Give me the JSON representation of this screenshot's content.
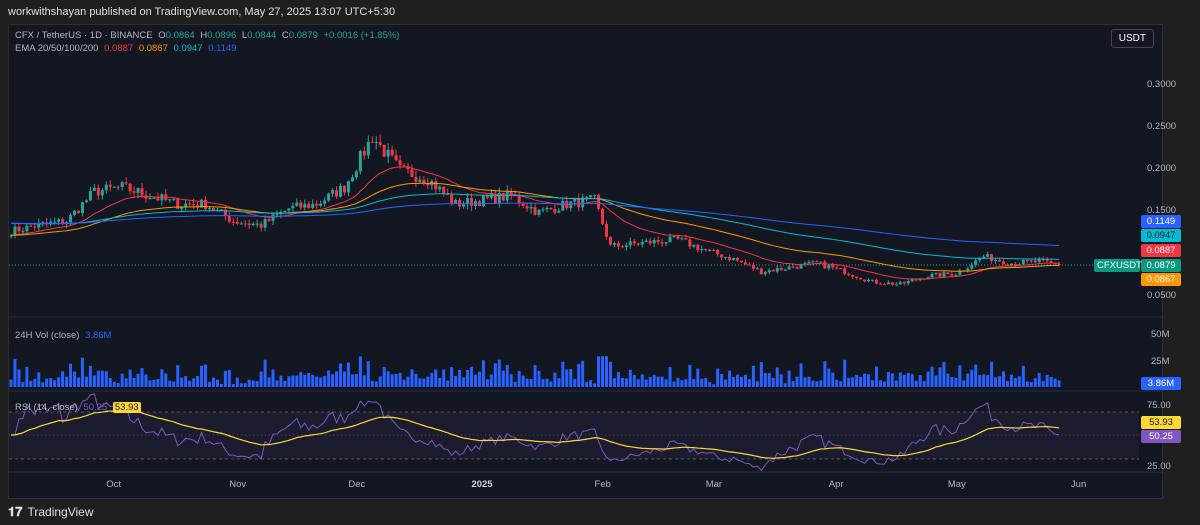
{
  "header": {
    "published": "workwithshayan published on TradingView.com, May 27, 2025 13:07 UTC+5:30"
  },
  "symbol": {
    "name": "CFX / TetherUS · 1D · BINANCE",
    "o_label": "O",
    "o": "0.0864",
    "h_label": "H",
    "h": "0.0896",
    "l_label": "L",
    "l": "0.0844",
    "c_label": "C",
    "c": "0.0879",
    "change": "+0.0016 (+1.85%)"
  },
  "ema": {
    "label": "EMA 20/50/100/200",
    "v20": "0.0887",
    "v50": "0.0867",
    "v100": "0.0947",
    "v200": "0.1149"
  },
  "currency": "USDT",
  "ticker_tag": "CFXUSDT",
  "volume": {
    "label": "24H Vol (close)",
    "value": "3.86M",
    "ticks": [
      "50M",
      "25M"
    ]
  },
  "rsi": {
    "label": "RSI (14, close)",
    "value": "50.25",
    "ma": "53.93",
    "ticks": [
      "75.00",
      "25.00"
    ]
  },
  "colors": {
    "up": "#26a69a",
    "down": "#f23645",
    "ema20": "#f23645",
    "ema50": "#ff9800",
    "ema100": "#00bcd4",
    "ema200": "#2962ff",
    "volume": "#2962ff",
    "rsi": "#7e57c2",
    "rsi_ma": "#fdd835"
  },
  "footer": {
    "brand": "TradingView"
  },
  "chart_data": {
    "type": "candlestick",
    "price_axis": {
      "ticks": [
        "0.3000",
        "0.2500",
        "0.2000",
        "0.1500",
        "0.0500"
      ],
      "ylim": [
        0.03,
        0.33
      ]
    },
    "x_ticks": [
      "Oct",
      "Nov",
      "Dec",
      "2025",
      "Feb",
      "Mar",
      "Apr",
      "May",
      "Jun"
    ],
    "approx_weekly_close": [
      [
        "2024-09-05",
        0.128
      ],
      [
        "2024-09-12",
        0.135
      ],
      [
        "2024-09-19",
        0.14
      ],
      [
        "2024-09-26",
        0.175
      ],
      [
        "2024-10-03",
        0.18
      ],
      [
        "2024-10-10",
        0.17
      ],
      [
        "2024-10-17",
        0.16
      ],
      [
        "2024-10-24",
        0.16
      ],
      [
        "2024-10-31",
        0.14
      ],
      [
        "2024-11-07",
        0.135
      ],
      [
        "2024-11-14",
        0.155
      ],
      [
        "2024-11-21",
        0.16
      ],
      [
        "2024-11-28",
        0.18
      ],
      [
        "2024-12-05",
        0.24
      ],
      [
        "2024-12-12",
        0.2
      ],
      [
        "2024-12-19",
        0.19
      ],
      [
        "2024-12-26",
        0.16
      ],
      [
        "2025-01-02",
        0.165
      ],
      [
        "2025-01-09",
        0.17
      ],
      [
        "2025-01-16",
        0.15
      ],
      [
        "2025-01-23",
        0.16
      ],
      [
        "2025-01-30",
        0.165
      ],
      [
        "2025-02-03",
        0.11
      ],
      [
        "2025-02-13",
        0.115
      ],
      [
        "2025-02-20",
        0.118
      ],
      [
        "2025-02-27",
        0.105
      ],
      [
        "2025-03-06",
        0.095
      ],
      [
        "2025-03-13",
        0.08
      ],
      [
        "2025-03-20",
        0.085
      ],
      [
        "2025-03-27",
        0.09
      ],
      [
        "2025-04-03",
        0.08
      ],
      [
        "2025-04-10",
        0.068
      ],
      [
        "2025-04-17",
        0.065
      ],
      [
        "2025-04-24",
        0.075
      ],
      [
        "2025-05-01",
        0.078
      ],
      [
        "2025-05-08",
        0.098
      ],
      [
        "2025-05-15",
        0.09
      ],
      [
        "2025-05-22",
        0.092
      ],
      [
        "2025-05-27",
        0.0879
      ]
    ],
    "price_labels": {
      "ema200": "0.1149",
      "ema100": "0.0947",
      "ema20": "0.0887",
      "last": "0.0879",
      "ema50": "0.0867"
    }
  }
}
